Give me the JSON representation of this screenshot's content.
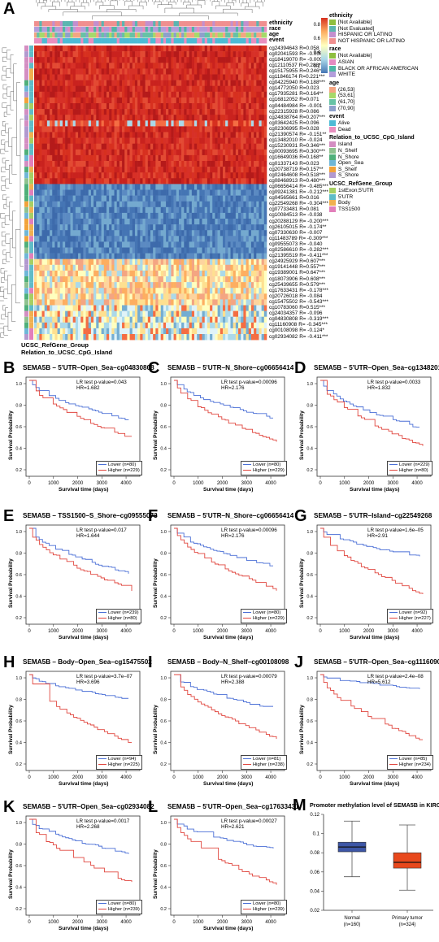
{
  "panels": {
    "A": "A",
    "B": "B",
    "C": "C",
    "D": "D",
    "E": "E",
    "F": "F",
    "G": "G",
    "H": "H",
    "I": "I",
    "J": "J",
    "K": "K",
    "L": "L",
    "M": "M"
  },
  "heatmap": {
    "annotation_rows": [
      "ethnicity",
      "race",
      "age",
      "event"
    ],
    "bottom_labels": [
      "UCSC_RefGene_Group",
      "Relation_to_UCSC_CpG_Island"
    ],
    "probes": [
      {
        "id": "cg24394643",
        "r": "R=0.058",
        "row": "hot"
      },
      {
        "id": "cg02041593",
        "r": "R= -0.056",
        "row": "hot"
      },
      {
        "id": "cg18419070",
        "r": "R= -0.009",
        "row": "hot"
      },
      {
        "id": "cg12110537",
        "r": "R=0.288***",
        "row": "hot"
      },
      {
        "id": "cg15175955",
        "r": "R=0.246***",
        "row": "hot"
      },
      {
        "id": "cg11846174",
        "r": "R=0.221***",
        "row": "hot"
      },
      {
        "id": "cg04225940",
        "r": "R=0.188***",
        "row": "hot"
      },
      {
        "id": "cg14772050",
        "r": "R=0.023",
        "row": "hot"
      },
      {
        "id": "cg17935281",
        "r": "R=0.164**",
        "row": "hot"
      },
      {
        "id": "cg16812052",
        "r": "R=0.071",
        "row": "hot"
      },
      {
        "id": "cg04484984",
        "r": "R= -0.001",
        "row": "hot"
      },
      {
        "id": "cg22315928",
        "r": "R=0.086",
        "row": "hot"
      },
      {
        "id": "cg24838764",
        "r": "R=0.207***",
        "row": "hot"
      },
      {
        "id": "cg03642425",
        "r": "R=0.096",
        "row": "hotmix"
      },
      {
        "id": "cg02306995",
        "r": "R=0.028",
        "row": "hot"
      },
      {
        "id": "cg21390574",
        "r": "R= -0.151**",
        "row": "hot"
      },
      {
        "id": "cg13482010",
        "r": "R= -0.024",
        "row": "hot"
      },
      {
        "id": "cg15230931",
        "r": "R=0.346***",
        "row": "hot"
      },
      {
        "id": "cg00093695",
        "r": "R=0.300***",
        "row": "hot"
      },
      {
        "id": "cg16649036",
        "r": "R=0.168**",
        "row": "hot"
      },
      {
        "id": "cg01337143",
        "r": "R=0.023",
        "row": "hot"
      },
      {
        "id": "cg20738719",
        "r": "R=0.157**",
        "row": "hot"
      },
      {
        "id": "cg02464608",
        "r": "R=0.518***",
        "row": "hot"
      },
      {
        "id": "cg08468913",
        "r": "R=0.480***",
        "row": "hot"
      },
      {
        "id": "cg06656414",
        "r": "R= -0.485***",
        "row": "cold"
      },
      {
        "id": "cg09241381",
        "r": "R= -0.212***",
        "row": "cold"
      },
      {
        "id": "cg04565661",
        "r": "R=0.016",
        "row": "cold"
      },
      {
        "id": "cg22549268",
        "r": "R= -0.304***",
        "row": "cold"
      },
      {
        "id": "cg07733481",
        "r": "R=0.081",
        "row": "cold"
      },
      {
        "id": "cg10084513",
        "r": "R= -0.038",
        "row": "cold"
      },
      {
        "id": "cg20288129",
        "r": "R= -0.200***",
        "row": "cold"
      },
      {
        "id": "cg26105015",
        "r": "R= -0.174**",
        "row": "cold"
      },
      {
        "id": "cg07330630",
        "r": "R= -0.007",
        "row": "cold"
      },
      {
        "id": "cg11483789",
        "r": "R= -0.309***",
        "row": "cold"
      },
      {
        "id": "cg09555073",
        "r": "R= -0.040",
        "row": "cold"
      },
      {
        "id": "cg02586610",
        "r": "R= -0.282***",
        "row": "cold"
      },
      {
        "id": "cg21395519",
        "r": "R= -0.411***",
        "row": "cold"
      },
      {
        "id": "cg24925929",
        "r": "R=0.607***",
        "row": "warm"
      },
      {
        "id": "cg19141448",
        "r": "R=0.557***",
        "row": "warm"
      },
      {
        "id": "cg19389001",
        "r": "R=0.647***",
        "row": "warm"
      },
      {
        "id": "cg18073906",
        "r": "R=0.608***",
        "row": "warm"
      },
      {
        "id": "cg25439655",
        "r": "R=0.579***",
        "row": "warm"
      },
      {
        "id": "cg17633431",
        "r": "R= -0.178***",
        "row": "warm"
      },
      {
        "id": "cg20726018",
        "r": "R= -0.084",
        "row": "warm"
      },
      {
        "id": "cg15475502",
        "r": "R= -0.543***",
        "row": "warm"
      },
      {
        "id": "cg10783060",
        "r": "R=0.515***",
        "row": "mix"
      },
      {
        "id": "cg24034357",
        "r": "R= -0.096",
        "row": "mix"
      },
      {
        "id": "cg04830808",
        "r": "R= -0.319***",
        "row": "mix"
      },
      {
        "id": "cg11160908",
        "r": "R= -0.345***",
        "row": "mix"
      },
      {
        "id": "cg00108098",
        "r": "R= -0.124*",
        "row": "mix"
      },
      {
        "id": "cg02934082",
        "r": "R= -0.411***",
        "row": "mix"
      }
    ],
    "colorbar_ticks": [
      "0.8",
      "0.6",
      "0.4",
      "0.2"
    ],
    "colorbar_colors": [
      "#d7301f",
      "#fdae61",
      "#ffffbf",
      "#abd9e9",
      "#4575b4"
    ],
    "legend": [
      {
        "title": "ethnicity",
        "items": [
          {
            "label": "[Not Available]",
            "color": "#8fbf3f"
          },
          {
            "label": "[Not Evaluated]",
            "color": "#5bb5b0"
          },
          {
            "label": "HISPANIC OR LATINO",
            "color": "#c38fce"
          },
          {
            "label": "NOT HISPANIC OR LATINO",
            "color": "#f08f8f"
          }
        ]
      },
      {
        "title": "race",
        "items": [
          {
            "label": "[Not Available]",
            "color": "#8fbf3f"
          },
          {
            "label": "ASIAN",
            "color": "#e58ac1"
          },
          {
            "label": "BLACK OR AFRICAN AMERICAN",
            "color": "#4fb6a6"
          },
          {
            "label": "WHITE",
            "color": "#b39ddb"
          }
        ]
      },
      {
        "title": "age",
        "items": [
          {
            "label": "(26,53]",
            "color": "#f4a582"
          },
          {
            "label": "(53,61]",
            "color": "#a6d96a"
          },
          {
            "label": "(61,70]",
            "color": "#66c2a5"
          },
          {
            "label": "(70,90]",
            "color": "#8da0cb"
          }
        ]
      },
      {
        "title": "event",
        "items": [
          {
            "label": "Alive",
            "color": "#4dbbd5"
          },
          {
            "label": "Dead",
            "color": "#e98fbf"
          }
        ]
      },
      {
        "title": "Relation_to_UCSC_CpG_Island",
        "items": [
          {
            "label": "Island",
            "color": "#d48ec2"
          },
          {
            "label": "N_Shelf",
            "color": "#8fc28f"
          },
          {
            "label": "N_Shore",
            "color": "#4fb07a"
          },
          {
            "label": "Open_Sea",
            "color": "#6fb7d8"
          },
          {
            "label": "S_Shelf",
            "color": "#f2a33a"
          },
          {
            "label": "S_Shore",
            "color": "#b299cf"
          }
        ]
      },
      {
        "title": "UCSC_RefGene_Group",
        "items": [
          {
            "label": "1stExon;5'UTR",
            "color": "#a6cf63"
          },
          {
            "label": "5'UTR",
            "color": "#5fbcc7"
          },
          {
            "label": "Body",
            "color": "#f0b04f"
          },
          {
            "label": "TSS1500",
            "color": "#e27fba"
          }
        ]
      }
    ]
  },
  "km_common": {
    "ylabel": "Survival Probability",
    "xlabel": "Survival time (days)",
    "x_ticks": [
      "0",
      "1000",
      "2000",
      "3000",
      "4000"
    ],
    "y_ticks": [
      "0.2",
      "0.4",
      "0.6",
      "0.8",
      "1.0"
    ],
    "lower_color": "#4a6fd6",
    "higher_color": "#e0463e"
  },
  "km_panels": [
    {
      "key": "B",
      "title": "SEMA5B – 5'UTR–Open_Sea–cg04830808",
      "p": "LR test p-value=0.043",
      "hr": "HR=1.682",
      "lower": "Lower (n=80)",
      "higher": "Higher (n=229)",
      "leg_pos": "bottom",
      "lower_end": 0.6,
      "higher_end": 0.42
    },
    {
      "key": "C",
      "title": "SEMA5B – 5'UTR–N_Shore–cg06656414",
      "p": "LR test p-value=0.00096",
      "hr": "HR=2.176",
      "lower": "Lower (n=80)",
      "higher": "Higher (n=229)",
      "leg_pos": "bottom",
      "lower_end": 0.62,
      "higher_end": 0.38
    },
    {
      "key": "D",
      "title": "SEMA5B – 5'UTR–Open_Sea–cg13482010",
      "p": "LR test p-value=0.0033",
      "hr": "HR=1.832",
      "lower": "Lower (n=229)",
      "higher": "Higher (n=80)",
      "leg_pos": "bottom",
      "lower_end": 0.52,
      "higher_end": 0.34
    },
    {
      "key": "E",
      "title": "SEMA5B – TSS1500–S_Shore–cg09555073",
      "p": "LR test p-value=0.017",
      "hr": "HR=1.644",
      "lower": "Lower (n=239)",
      "higher": "Higher (n=80)",
      "leg_pos": "bottom",
      "lower_end": 0.55,
      "higher_end": 0.38
    },
    {
      "key": "F",
      "title": "SEMA5B – 5'UTR–N_Shore–cg06656414",
      "p": "LR test p-value=0.00096",
      "hr": "HR=2.176",
      "lower": "Lower (n=80)",
      "higher": "Higher (n=229)",
      "leg_pos": "bottom",
      "lower_end": 0.62,
      "higher_end": 0.38
    },
    {
      "key": "G",
      "title": "SEMA5B – 5'UTR–Island–cg22549268",
      "p": "LR test p-value=1.6e–05",
      "hr": "HR=2.91",
      "lower": "Lower (n=92)",
      "higher": "Higher (n=227)",
      "leg_pos": "bottom",
      "lower_end": 0.72,
      "higher_end": 0.34
    },
    {
      "key": "H",
      "title": "SEMA5B – Body–Open_Sea–cg15475502",
      "p": "LR test p-value=3.7e–07",
      "hr": "HR=3.696",
      "lower": "Lower (n=94)",
      "higher": "Higher (n=225)",
      "leg_pos": "bottom",
      "lower_end": 0.76,
      "higher_end": 0.3
    },
    {
      "key": "I",
      "title": "SEMA5B – Body–N_Shelf–cg00108098",
      "p": "LR test p-value=0.00079",
      "hr": "HR=2.388",
      "lower": "Lower (n=81)",
      "higher": "Higher (n=238)",
      "leg_pos": "bottom",
      "lower_end": 0.66,
      "higher_end": 0.36
    },
    {
      "key": "J",
      "title": "SEMA5B – 5'UTR–Open_Sea–cg11160908",
      "p": "LR test p-value=2.4e–08",
      "hr": "HR=5.612",
      "lower": "Lower (n=85)",
      "higher": "Higher (n=234)",
      "leg_pos": "bottom",
      "lower_end": 0.86,
      "higher_end": 0.34
    },
    {
      "key": "K",
      "title": "SEMA5B – 5'UTR–Open_Sea–cg02934082",
      "p": "LR test p-value=0.0017",
      "hr": "HR=2.268",
      "lower": "Lower (n=80)",
      "higher": "Higher (n=239)",
      "leg_pos": "bottom",
      "lower_end": 0.66,
      "higher_end": 0.36
    },
    {
      "key": "L",
      "title": "SEMA5B – 5'UTR–Open_Sea–cg17633431",
      "p": "LR test p-value=0.00027",
      "hr": "HR=2.621",
      "lower": "Lower (n=80)",
      "higher": "Higher (n=239)",
      "leg_pos": "bottom",
      "lower_end": 0.7,
      "higher_end": 0.34
    }
  ],
  "chart_data": {
    "type": "box",
    "title": "Promoter methylation level of SEMA5B in KIRC",
    "categories": [
      "Normal",
      "Primary tumor"
    ],
    "category_n": [
      "(n=160)",
      "(n=324)"
    ],
    "ylim": [
      0.02,
      0.12
    ],
    "y_ticks": [
      "0.12",
      "0.1",
      "0.08",
      "0.06",
      "0.04",
      "0.02"
    ],
    "boxes": [
      {
        "name": "Normal",
        "min": 0.055,
        "q1": 0.081,
        "median": 0.086,
        "q3": 0.091,
        "max": 0.113,
        "color": "#3d56a6"
      },
      {
        "name": "Primary tumor",
        "min": 0.041,
        "q1": 0.064,
        "median": 0.07,
        "q3": 0.08,
        "max": 0.109,
        "color": "#e8481c"
      }
    ]
  }
}
